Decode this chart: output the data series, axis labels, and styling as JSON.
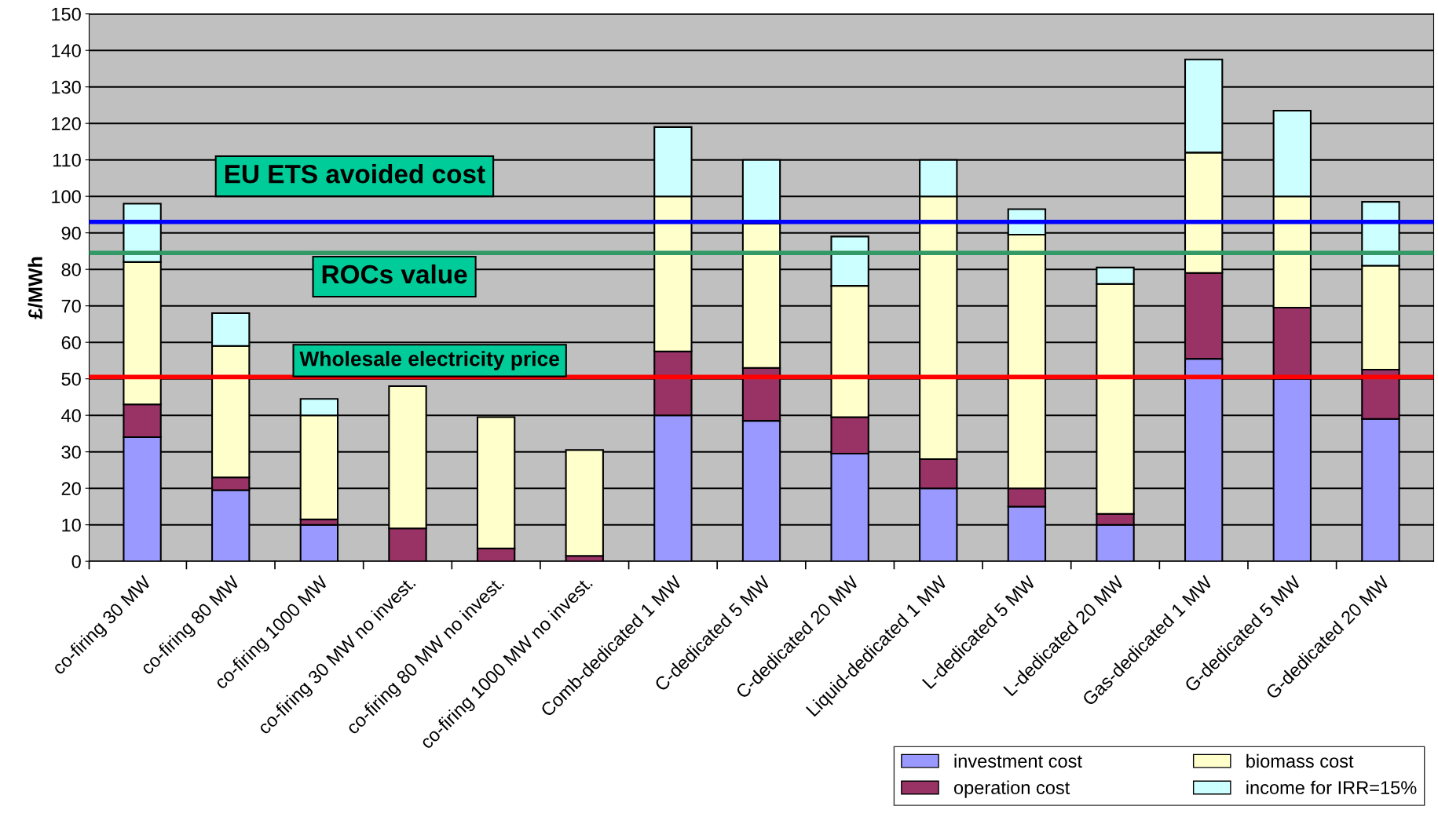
{
  "chart_data": {
    "type": "bar",
    "stacked": true,
    "ylabel": "£/MWh",
    "categories": [
      "co-firing 30 MW",
      "co-firing 80 MW",
      "co-firing 1000 MW",
      "co-firing 30 MW no invest.",
      "co-firing 80 MW no invest.",
      "co-firing 1000 MW no invest.",
      "Comb-dedicated 1 MW",
      "C-dedicated 5 MW",
      "C-dedicated 20 MW",
      "Liquid-dedicated 1 MW",
      "L-dedicated 5 MW",
      "L-dedicated 20 MW",
      "Gas-dedicated 1 MW",
      "G-dedicated 5 MW",
      "G-dedicated 20 MW"
    ],
    "series": [
      {
        "name": "investment cost",
        "color": "#9999ff",
        "values": [
          34,
          19.5,
          10,
          null,
          null,
          null,
          40,
          38.5,
          29.5,
          20,
          15,
          10,
          55.5,
          50,
          39
        ]
      },
      {
        "name": "operation cost",
        "color": "#993366",
        "values": [
          9,
          3.5,
          1.5,
          9,
          3.5,
          1.5,
          17.5,
          14.5,
          10,
          8,
          5,
          3,
          23.5,
          19.5,
          13.5
        ]
      },
      {
        "name": "biomass cost",
        "color": "#ffffcc",
        "values": [
          39,
          36,
          28.5,
          39,
          36,
          29,
          42.5,
          39.5,
          36,
          72,
          69.5,
          63,
          33,
          30.5,
          28.5
        ]
      },
      {
        "name": "income for IRR=15%",
        "color": "#ccffff",
        "values": [
          16,
          9,
          4.5,
          null,
          null,
          null,
          19,
          17.5,
          13.5,
          10,
          7,
          4.5,
          25.5,
          23.5,
          17.5
        ]
      }
    ],
    "ylim": [
      0,
      150
    ],
    "yticks": [
      0,
      10,
      20,
      30,
      40,
      50,
      60,
      70,
      80,
      90,
      100,
      110,
      120,
      130,
      140,
      150
    ],
    "grid": "y",
    "legend": "bottom right",
    "ref_lines": [
      {
        "axis": "y",
        "value": 93,
        "label": "EU ETS avoided cost",
        "color": "#0000ff"
      },
      {
        "axis": "y",
        "value": 84.5,
        "label": "ROCs value",
        "color": "#339966"
      },
      {
        "axis": "y",
        "value": 50.5,
        "label": "Wholesale electricity price",
        "color": "#ff0000"
      }
    ]
  }
}
